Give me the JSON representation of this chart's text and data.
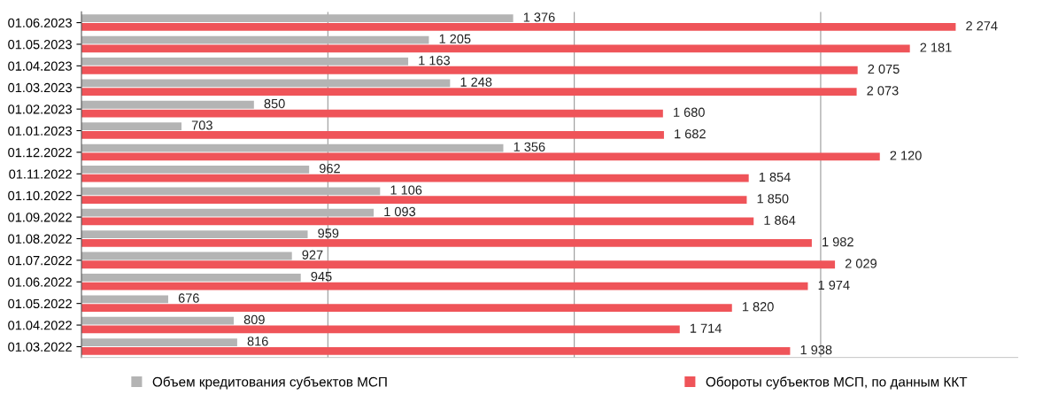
{
  "chart_data": {
    "type": "bar",
    "orientation": "horizontal",
    "categories": [
      "01.06.2023",
      "01.05.2023",
      "01.04.2023",
      "01.03.2023",
      "01.02.2023",
      "01.01.2023",
      "01.12.2022",
      "01.11.2022",
      "01.10.2022",
      "01.09.2022",
      "01.08.2022",
      "01.07.2022",
      "01.06.2022",
      "01.05.2022",
      "01.04.2022",
      "01.03.2022"
    ],
    "series": [
      {
        "name": "Объем кредитования субъектов МСП",
        "color": "#b4b4b4",
        "values": [
          1376,
          1205,
          1163,
          1248,
          850,
          703,
          1356,
          962,
          1106,
          1093,
          959,
          927,
          945,
          676,
          809,
          816
        ],
        "value_labels": [
          "1 376",
          "1 205",
          "1 163",
          "1 248",
          "850",
          "703",
          "1 356",
          "962",
          "1 106",
          "1 093",
          "959",
          "927",
          "945",
          "676",
          "809",
          "816"
        ]
      },
      {
        "name": "Обороты субъектов МСП, по данным ККТ",
        "color": "#ef5459",
        "values": [
          2274,
          2181,
          2075,
          2073,
          1680,
          1682,
          2120,
          1854,
          1850,
          1864,
          1982,
          2029,
          1974,
          1820,
          1714,
          1938
        ],
        "value_labels": [
          "2 274",
          "2 181",
          "2 075",
          "2 073",
          "1 680",
          "1 682",
          "2 120",
          "1 854",
          "1 850",
          "1 864",
          "1 982",
          "2 029",
          "1 974",
          "1 820",
          "1 714",
          "1 938"
        ]
      }
    ],
    "xlim": [
      500,
      2400
    ],
    "xticks": [
      {
        "value": 1000,
        "label": null
      },
      {
        "value": 1500,
        "label": null
      },
      {
        "value": 2000,
        "label": null
      }
    ],
    "grid": "x",
    "legend": "bottom",
    "tick_labels": "y"
  }
}
